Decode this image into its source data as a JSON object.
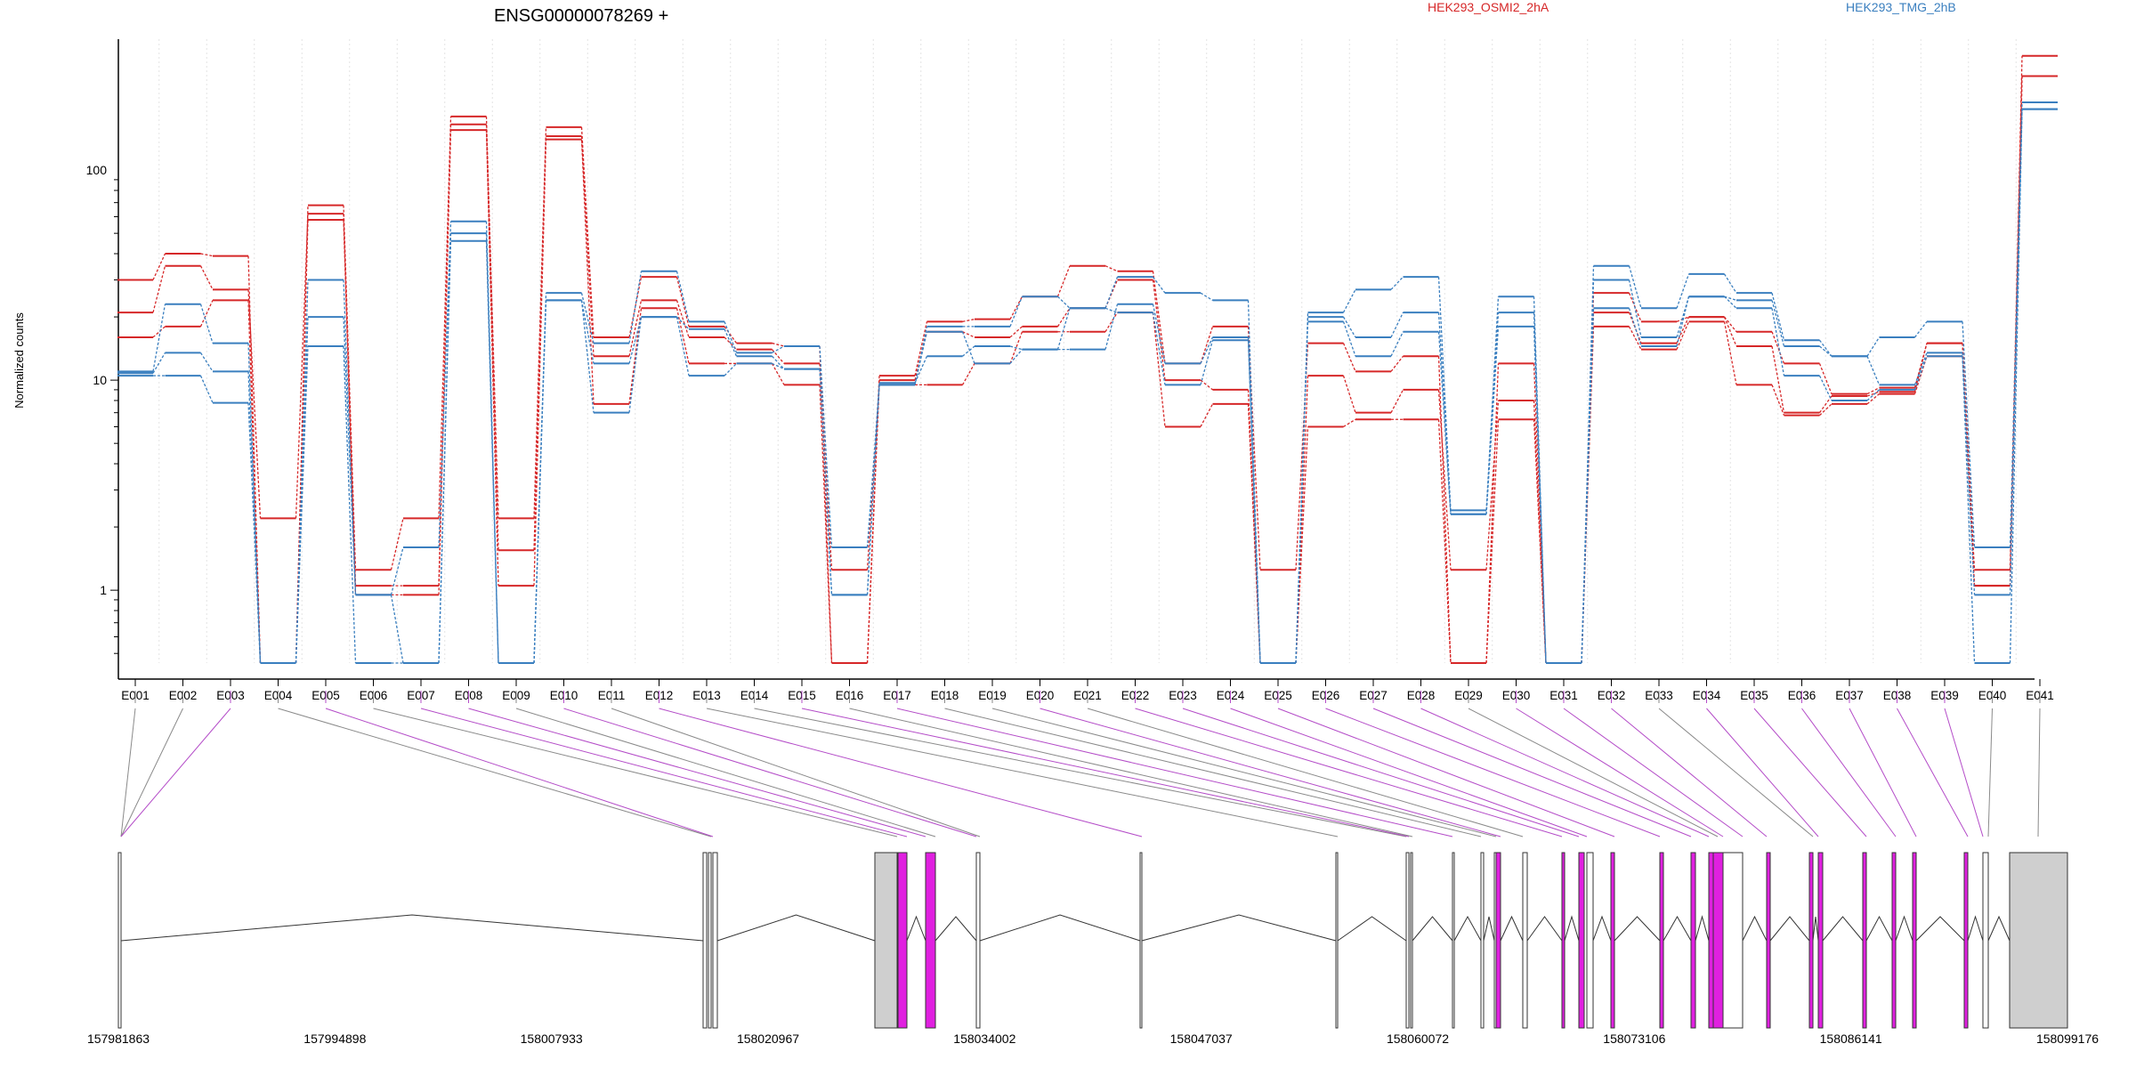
{
  "chart_data": {
    "type": "line",
    "title": "ENSG00000078269 +",
    "ylabel": "Normalized counts",
    "y_scale": "log",
    "ylim": [
      0.45,
      420
    ],
    "y_ticks": [
      {
        "value": 1,
        "label": "1"
      },
      {
        "value": 10,
        "label": "10"
      },
      {
        "value": 100,
        "label": "100"
      }
    ],
    "x": [
      "E001",
      "E002",
      "E003",
      "E004",
      "E005",
      "E006",
      "E007",
      "E008",
      "E009",
      "E010",
      "E011",
      "E012",
      "E013",
      "E014",
      "E015",
      "E016",
      "E017",
      "E018",
      "E019",
      "E020",
      "E021",
      "E022",
      "E023",
      "E024",
      "E025",
      "E026",
      "E027",
      "E028",
      "E029",
      "E030",
      "E031",
      "E032",
      "E033",
      "E034",
      "E035",
      "E036",
      "E037",
      "E038",
      "E039",
      "E040",
      "E041"
    ],
    "groups": [
      {
        "name": "HEK293_OSMI2_2hA",
        "color": "#d62728"
      },
      {
        "name": "HEK293_TMG_2hB",
        "color": "#3a7fbf"
      }
    ],
    "series": [
      {
        "group": 0,
        "values": [
          30,
          40,
          39,
          0.45,
          68,
          1.25,
          2.2,
          180,
          2.2,
          160,
          16,
          31,
          18,
          15,
          14.5,
          0.45,
          10.5,
          19,
          19.5,
          25,
          35,
          33,
          12,
          18,
          1.25,
          15,
          11,
          13,
          0.45,
          12,
          0.45,
          26,
          19,
          20,
          17,
          12,
          8.6,
          9.2,
          15,
          1.25,
          350
        ]
      },
      {
        "group": 0,
        "values": [
          21,
          35,
          27,
          2.2,
          62,
          1.05,
          1.05,
          165,
          1.55,
          145,
          13,
          24,
          16,
          14,
          12,
          1.25,
          10,
          17,
          16,
          18,
          22,
          30,
          10,
          9,
          0.45,
          10.5,
          7,
          9,
          1.25,
          8,
          0.45,
          21,
          15,
          20,
          14.5,
          7,
          8.4,
          8.8,
          15,
          1.05,
          280
        ]
      },
      {
        "group": 0,
        "values": [
          16,
          18,
          24,
          0.45,
          58,
          0.95,
          0.95,
          155,
          1.05,
          140,
          7.7,
          22,
          12,
          12,
          9.5,
          0.45,
          9.5,
          9.5,
          12,
          17,
          17,
          21,
          6,
          7.7,
          0.45,
          6,
          6.5,
          6.5,
          0.45,
          6.5,
          0.45,
          18,
          14,
          19,
          9.5,
          6.8,
          7.7,
          8.6,
          13,
          1.05,
          280
        ]
      },
      {
        "group": 1,
        "values": [
          11,
          23,
          15,
          0.45,
          30,
          0.95,
          1.6,
          57,
          0.45,
          26,
          15,
          33,
          19,
          13.5,
          14.5,
          1.6,
          9.5,
          18,
          18,
          25,
          22,
          31,
          26,
          24,
          0.45,
          21,
          27,
          31,
          2.4,
          25,
          0.45,
          35,
          22,
          32,
          26,
          15.5,
          13,
          16,
          19,
          1.6,
          210
        ]
      },
      {
        "group": 1,
        "values": [
          10.8,
          13.5,
          11,
          0.45,
          20,
          0.95,
          0.45,
          50,
          0.45,
          24,
          12,
          20,
          17.5,
          13,
          11.3,
          0.95,
          9.7,
          13,
          14.5,
          14,
          14,
          23,
          12,
          16,
          0.45,
          20,
          16,
          21,
          2.3,
          21,
          0.45,
          30,
          16,
          25,
          24,
          14.5,
          13,
          9.5,
          13.5,
          0.95,
          195
        ]
      },
      {
        "group": 1,
        "values": [
          10.5,
          10.5,
          7.8,
          0.45,
          14.5,
          0.45,
          0.45,
          46,
          0.45,
          24,
          7,
          20,
          10.5,
          12,
          11.3,
          0.95,
          9.5,
          17,
          12,
          14,
          22,
          21,
          9.5,
          15.5,
          0.45,
          19,
          13,
          17,
          2.3,
          18,
          0.45,
          22,
          14.5,
          25,
          22,
          10.5,
          8,
          9,
          13,
          0.45,
          195
        ]
      }
    ],
    "genome_axis": [
      "157981863",
      "157994898",
      "158007933",
      "158020967",
      "158034002",
      "158047037",
      "158060072",
      "158073106",
      "158086141",
      "158099176"
    ]
  }
}
